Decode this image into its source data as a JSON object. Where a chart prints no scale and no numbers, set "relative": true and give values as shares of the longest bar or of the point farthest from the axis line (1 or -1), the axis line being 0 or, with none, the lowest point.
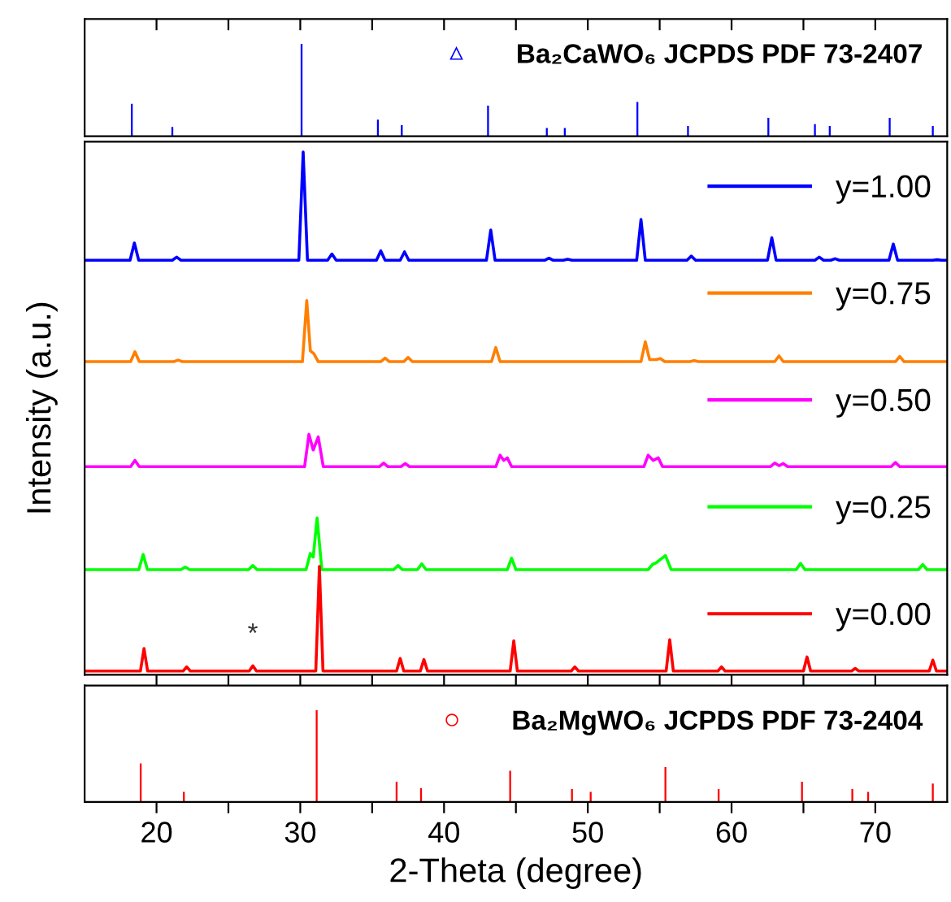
{
  "chart_data": [
    {
      "type": "bar",
      "relative": true,
      "xlim": [
        15,
        75
      ],
      "xticks": [
        {
          "value": 20,
          "label": null
        },
        {
          "value": 25,
          "label": null
        },
        {
          "value": 30,
          "label": null
        },
        {
          "value": 35,
          "label": null
        },
        {
          "value": 40,
          "label": null
        },
        {
          "value": 45,
          "label": null
        },
        {
          "value": 50,
          "label": null
        },
        {
          "value": 55,
          "label": null
        },
        {
          "value": 60,
          "label": null
        },
        {
          "value": 65,
          "label": null
        },
        {
          "value": 70,
          "label": null
        }
      ],
      "tick_labels": false,
      "legend": "top right",
      "marker": "triangle",
      "series": [
        {
          "name": "Ba₂CaWO₆ JCPDS PDF 73-2407",
          "color": "#0000ff",
          "x": [
            18.28,
            21.1,
            30.09,
            35.4,
            37.06,
            43.06,
            47.15,
            48.4,
            53.45,
            56.97,
            62.56,
            65.8,
            66.83,
            71.0,
            74.0
          ],
          "values": [
            0.35,
            0.1,
            1,
            0.18,
            0.12,
            0.33,
            0.09,
            0.09,
            0.37,
            0.11,
            0.2,
            0.13,
            0.11,
            0.2,
            0.11
          ]
        }
      ]
    },
    {
      "type": "line",
      "relative": true,
      "ylabel": "Intensity (a.u.)",
      "xlim": [
        15,
        75
      ],
      "xticks": [
        {
          "value": 20,
          "label": null
        },
        {
          "value": 25,
          "label": null
        },
        {
          "value": 30,
          "label": null
        },
        {
          "value": 35,
          "label": null
        },
        {
          "value": 40,
          "label": null
        },
        {
          "value": 45,
          "label": null
        },
        {
          "value": 50,
          "label": null
        },
        {
          "value": 55,
          "label": null
        },
        {
          "value": 60,
          "label": null
        },
        {
          "value": 65,
          "label": null
        },
        {
          "value": 70,
          "label": null
        }
      ],
      "tick_labels": false,
      "legend": "right",
      "annotations": [
        {
          "text": "*",
          "x": 26.7,
          "y": 0.017
        }
      ],
      "series": [
        {
          "name": "y=1.00",
          "color": "#0000ff",
          "x": [
            15,
            18.16,
            18.46,
            18.76,
            21.1,
            21.4,
            21.7,
            29.9,
            30.2,
            30.5,
            31.9,
            32.2,
            32.5,
            35.3,
            35.6,
            35.9,
            36.95,
            37.25,
            37.55,
            42.95,
            43.25,
            43.55,
            47.0,
            47.3,
            47.6,
            48.3,
            48.6,
            48.9,
            53.4,
            53.7,
            54.0,
            56.9,
            57.2,
            57.5,
            62.5,
            62.8,
            63.1,
            65.8,
            66.1,
            66.4,
            66.9,
            67.2,
            67.5,
            70.95,
            71.25,
            71.55,
            74.0,
            74.3,
            74.6,
            75
          ],
          "values": [
            0.793,
            0.793,
            0.826,
            0.793,
            0.793,
            0.799,
            0.793,
            0.793,
            1.0,
            0.793,
            0.793,
            0.805,
            0.793,
            0.793,
            0.811,
            0.793,
            0.793,
            0.809,
            0.793,
            0.793,
            0.851,
            0.793,
            0.793,
            0.797,
            0.793,
            0.793,
            0.795,
            0.793,
            0.793,
            0.871,
            0.793,
            0.793,
            0.801,
            0.793,
            0.793,
            0.836,
            0.793,
            0.793,
            0.799,
            0.793,
            0.793,
            0.796,
            0.793,
            0.793,
            0.824,
            0.793,
            0.793,
            0.794,
            0.793,
            0.793
          ]
        },
        {
          "name": "y=0.75",
          "color": "#ff7f00",
          "x": [
            15,
            18.2,
            18.5,
            18.8,
            21.2,
            21.5,
            21.8,
            30.15,
            30.45,
            30.7,
            30.95,
            31.25,
            35.6,
            35.9,
            36.2,
            37.2,
            37.5,
            37.8,
            43.3,
            43.6,
            43.9,
            53.7,
            54.0,
            54.3,
            54.75,
            55.05,
            55.35,
            57.1,
            57.4,
            57.7,
            63.0,
            63.3,
            63.6,
            71.4,
            71.7,
            72.0,
            75
          ],
          "values": [
            0.599,
            0.599,
            0.618,
            0.599,
            0.599,
            0.602,
            0.599,
            0.599,
            0.716,
            0.62,
            0.614,
            0.599,
            0.599,
            0.606,
            0.599,
            0.599,
            0.607,
            0.599,
            0.599,
            0.626,
            0.599,
            0.599,
            0.637,
            0.603,
            0.603,
            0.605,
            0.599,
            0.599,
            0.601,
            0.599,
            0.599,
            0.61,
            0.599,
            0.599,
            0.609,
            0.599,
            0.599
          ]
        },
        {
          "name": "y=0.50",
          "color": "#ff00ff",
          "x": [
            15,
            18.2,
            18.5,
            18.8,
            30.3,
            30.6,
            30.9,
            31.25,
            31.6,
            35.5,
            35.8,
            36.1,
            37.0,
            37.3,
            37.6,
            43.6,
            43.9,
            44.15,
            44.4,
            44.7,
            53.9,
            54.2,
            54.55,
            54.9,
            55.2,
            62.7,
            63.0,
            63.3,
            63.6,
            63.9,
            71.1,
            71.4,
            71.7,
            75
          ],
          "values": [
            0.398,
            0.398,
            0.41,
            0.398,
            0.398,
            0.46,
            0.43,
            0.455,
            0.398,
            0.398,
            0.405,
            0.398,
            0.398,
            0.404,
            0.398,
            0.398,
            0.42,
            0.41,
            0.415,
            0.398,
            0.398,
            0.42,
            0.41,
            0.415,
            0.398,
            0.398,
            0.405,
            0.4,
            0.404,
            0.398,
            0.398,
            0.406,
            0.398,
            0.398
          ]
        },
        {
          "name": "y=0.25",
          "color": "#00ff00",
          "x": [
            15,
            18.77,
            19.07,
            19.37,
            21.7,
            22.0,
            22.3,
            26.4,
            26.7,
            27.0,
            30.4,
            30.7,
            30.9,
            31.17,
            31.5,
            36.5,
            36.8,
            37.1,
            38.15,
            38.45,
            38.75,
            44.4,
            44.7,
            45.0,
            54.2,
            54.5,
            54.8,
            55.4,
            55.8,
            64.5,
            64.8,
            65.1,
            73.0,
            73.3,
            73.6,
            75
          ],
          "values": [
            0.201,
            0.201,
            0.23,
            0.201,
            0.201,
            0.206,
            0.201,
            0.201,
            0.209,
            0.201,
            0.201,
            0.232,
            0.225,
            0.3,
            0.201,
            0.201,
            0.209,
            0.201,
            0.201,
            0.212,
            0.201,
            0.201,
            0.223,
            0.201,
            0.201,
            0.211,
            0.215,
            0.228,
            0.201,
            0.201,
            0.213,
            0.201,
            0.201,
            0.211,
            0.201,
            0.201
          ]
        },
        {
          "name": "y=0.00",
          "color": "#ff0000",
          "x": [
            15,
            18.88,
            19.13,
            19.38,
            21.85,
            22.1,
            22.35,
            26.45,
            26.7,
            26.95,
            31.08,
            31.33,
            31.58,
            36.7,
            36.95,
            37.2,
            38.35,
            38.6,
            38.85,
            44.6,
            44.85,
            45.1,
            48.85,
            49.1,
            49.35,
            55.45,
            55.7,
            55.95,
            59.05,
            59.3,
            59.55,
            65.0,
            65.25,
            65.5,
            68.35,
            68.6,
            68.85,
            73.75,
            74.0,
            74.25,
            75
          ],
          "values": [
            0.007,
            0.007,
            0.05,
            0.007,
            0.007,
            0.015,
            0.007,
            0.007,
            0.017,
            0.007,
            0.007,
            0.207,
            0.007,
            0.007,
            0.031,
            0.007,
            0.007,
            0.029,
            0.007,
            0.007,
            0.065,
            0.007,
            0.007,
            0.015,
            0.007,
            0.007,
            0.067,
            0.007,
            0.007,
            0.015,
            0.007,
            0.007,
            0.034,
            0.007,
            0.007,
            0.012,
            0.007,
            0.007,
            0.028,
            0.007,
            0.007
          ]
        }
      ]
    },
    {
      "type": "bar",
      "relative": true,
      "xlabel": "2-Theta (degree)",
      "xlim": [
        15,
        75
      ],
      "xticks": [
        20,
        {
          "value": 25,
          "label": null
        },
        30,
        {
          "value": 35,
          "label": null
        },
        40,
        {
          "value": 45,
          "label": null
        },
        50,
        {
          "value": 55,
          "label": null
        },
        60,
        {
          "value": 65,
          "label": null
        },
        70
      ],
      "tick_labels": "x",
      "legend": "top right",
      "marker": "circle",
      "series": [
        {
          "name": "Ba₂MgWO₆ JCPDS PDF 73-2404",
          "color": "#ff0000",
          "x": [
            18.9,
            21.9,
            31.14,
            36.7,
            38.4,
            44.6,
            48.9,
            50.2,
            55.4,
            59.1,
            64.9,
            68.4,
            69.5,
            74.0
          ],
          "values": [
            0.42,
            0.11,
            1,
            0.22,
            0.15,
            0.34,
            0.14,
            0.11,
            0.38,
            0.14,
            0.22,
            0.14,
            0.11,
            0.2
          ]
        }
      ]
    }
  ]
}
